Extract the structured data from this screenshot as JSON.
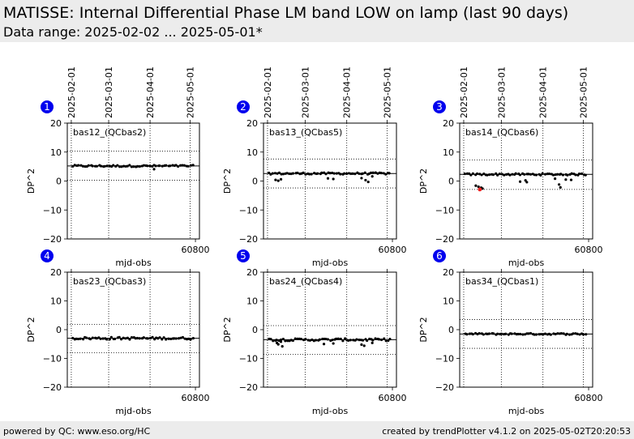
{
  "header": {
    "title": "MATISSE: Internal Differential Phase LM band LOW on lamp (last 90 days)",
    "subtitle": "Data range: 2025-02-02 ... 2025-05-01*"
  },
  "footer": {
    "left": "powered by QC: www.eso.org/HC",
    "right": "created by trendPlotter v4.1.2 on 2025-05-02T20:20:53"
  },
  "colors": {
    "background": "#ffffff",
    "header_bg": "#ececec",
    "badge": "#0000ee",
    "points": "#000000",
    "highlight_point": "#ee2222"
  },
  "chart_data": [
    {
      "type": "scatter",
      "panel": "1",
      "label": "bas12_(QCbas2)",
      "xlabel": "mjd-obs",
      "ylabel": "DP^2",
      "xlim": [
        60704,
        60803
      ],
      "ylim": [
        -20,
        20
      ],
      "yticks": [
        -20,
        -10,
        0,
        10,
        20
      ],
      "xticks": [
        60800
      ],
      "date_ticks": [
        "2025-02-01",
        "2025-03-01",
        "2025-04-01",
        "2025-05-01"
      ],
      "date_ticks_mjd": [
        60707,
        60735,
        60766,
        60796
      ],
      "median": 5.2,
      "limits": [
        0.3,
        10.3
      ],
      "grid": "dotted",
      "n_points": 60,
      "spread": 0.3,
      "outliers": [
        {
          "x": 60769,
          "y": 4.1
        }
      ],
      "highlight": []
    },
    {
      "type": "scatter",
      "panel": "2",
      "label": "bas13_(QCbas5)",
      "xlabel": "mjd-obs",
      "ylabel": "DP^2",
      "xlim": [
        60704,
        60803
      ],
      "ylim": [
        -20,
        20
      ],
      "yticks": [
        -20,
        -10,
        0,
        10,
        20
      ],
      "xticks": [
        60800
      ],
      "date_ticks": [
        "2025-02-01",
        "2025-03-01",
        "2025-04-01",
        "2025-05-01"
      ],
      "date_ticks_mjd": [
        60707,
        60735,
        60766,
        60796
      ],
      "median": 2.6,
      "limits": [
        -2.4,
        7.6
      ],
      "grid": "dotted",
      "n_points": 60,
      "spread": 0.3,
      "outliers": [
        {
          "x": 60713,
          "y": 0.4
        },
        {
          "x": 60715,
          "y": 0.1
        },
        {
          "x": 60717,
          "y": 0.6
        },
        {
          "x": 60752,
          "y": 0.9
        },
        {
          "x": 60756,
          "y": 0.7
        },
        {
          "x": 60777,
          "y": 1.0
        },
        {
          "x": 60780,
          "y": 0.3
        },
        {
          "x": 60782,
          "y": -0.3
        },
        {
          "x": 60785,
          "y": 1.6
        }
      ],
      "highlight": []
    },
    {
      "type": "scatter",
      "panel": "3",
      "label": "bas14_(QCbas6)",
      "xlabel": "mjd-obs",
      "ylabel": "DP^2",
      "xlim": [
        60704,
        60803
      ],
      "ylim": [
        -20,
        20
      ],
      "yticks": [
        -20,
        -10,
        0,
        10,
        20
      ],
      "xticks": [
        60800
      ],
      "date_ticks": [
        "2025-02-01",
        "2025-03-01",
        "2025-04-01",
        "2025-05-01"
      ],
      "date_ticks_mjd": [
        60707,
        60735,
        60766,
        60796
      ],
      "median": 2.3,
      "limits": [
        -2.9,
        7.3
      ],
      "grid": "dotted",
      "n_points": 60,
      "spread": 0.3,
      "outliers": [
        {
          "x": 60716,
          "y": -1.6
        },
        {
          "x": 60718,
          "y": -2.0
        },
        {
          "x": 60720,
          "y": -2.3
        },
        {
          "x": 60721,
          "y": -2.6
        },
        {
          "x": 60749,
          "y": -0.2
        },
        {
          "x": 60753,
          "y": 0.2
        },
        {
          "x": 60754,
          "y": -0.4
        },
        {
          "x": 60775,
          "y": 0.8
        },
        {
          "x": 60778,
          "y": -1.2
        },
        {
          "x": 60779,
          "y": -2.2
        },
        {
          "x": 60783,
          "y": 0.5
        },
        {
          "x": 60787,
          "y": 0.4
        }
      ],
      "highlight": [
        {
          "x": 60719,
          "y": -2.9
        }
      ]
    },
    {
      "type": "scatter",
      "panel": "4",
      "label": "bas23_(QCbas3)",
      "xlabel": "mjd-obs",
      "ylabel": "DP^2",
      "xlim": [
        60704,
        60803
      ],
      "ylim": [
        -20,
        20
      ],
      "yticks": [
        -20,
        -10,
        0,
        10,
        20
      ],
      "xticks": [
        60800
      ],
      "date_ticks": [
        "2025-02-01",
        "2025-03-01",
        "2025-04-01",
        "2025-05-01"
      ],
      "date_ticks_mjd": [
        60707,
        60735,
        60766,
        60796
      ],
      "median": -3.0,
      "limits": [
        -8.0,
        1.8
      ],
      "grid": "dotted",
      "n_points": 60,
      "spread": 0.4,
      "outliers": [],
      "highlight": []
    },
    {
      "type": "scatter",
      "panel": "5",
      "label": "bas24_(QCbas4)",
      "xlabel": "mjd-obs",
      "ylabel": "DP^2",
      "xlim": [
        60704,
        60803
      ],
      "ylim": [
        -20,
        20
      ],
      "yticks": [
        -20,
        -10,
        0,
        10,
        20
      ],
      "xticks": [
        60800
      ],
      "date_ticks": [
        "2025-02-01",
        "2025-03-01",
        "2025-04-01",
        "2025-05-01"
      ],
      "date_ticks_mjd": [
        60707,
        60735,
        60766,
        60796
      ],
      "median": -3.5,
      "limits": [
        -8.6,
        1.4
      ],
      "grid": "dotted",
      "n_points": 60,
      "spread": 0.4,
      "outliers": [
        {
          "x": 60714,
          "y": -4.6
        },
        {
          "x": 60715,
          "y": -5.1
        },
        {
          "x": 60717,
          "y": -4.2
        },
        {
          "x": 60718,
          "y": -5.8
        },
        {
          "x": 60749,
          "y": -5.0
        },
        {
          "x": 60756,
          "y": -4.8
        },
        {
          "x": 60777,
          "y": -5.2
        },
        {
          "x": 60779,
          "y": -5.6
        },
        {
          "x": 60785,
          "y": -4.6
        }
      ],
      "highlight": []
    },
    {
      "type": "scatter",
      "panel": "6",
      "label": "bas34_(QCbas1)",
      "xlabel": "mjd-obs",
      "ylabel": "DP^2",
      "xlim": [
        60704,
        60803
      ],
      "ylim": [
        -20,
        20
      ],
      "yticks": [
        -20,
        -10,
        0,
        10,
        20
      ],
      "xticks": [
        60800
      ],
      "date_ticks": [
        "2025-02-01",
        "2025-03-01",
        "2025-04-01",
        "2025-05-01"
      ],
      "date_ticks_mjd": [
        60707,
        60735,
        60766,
        60796
      ],
      "median": -1.5,
      "limits": [
        -6.5,
        3.5
      ],
      "grid": "dotted",
      "n_points": 60,
      "spread": 0.25,
      "outliers": [],
      "highlight": []
    }
  ]
}
